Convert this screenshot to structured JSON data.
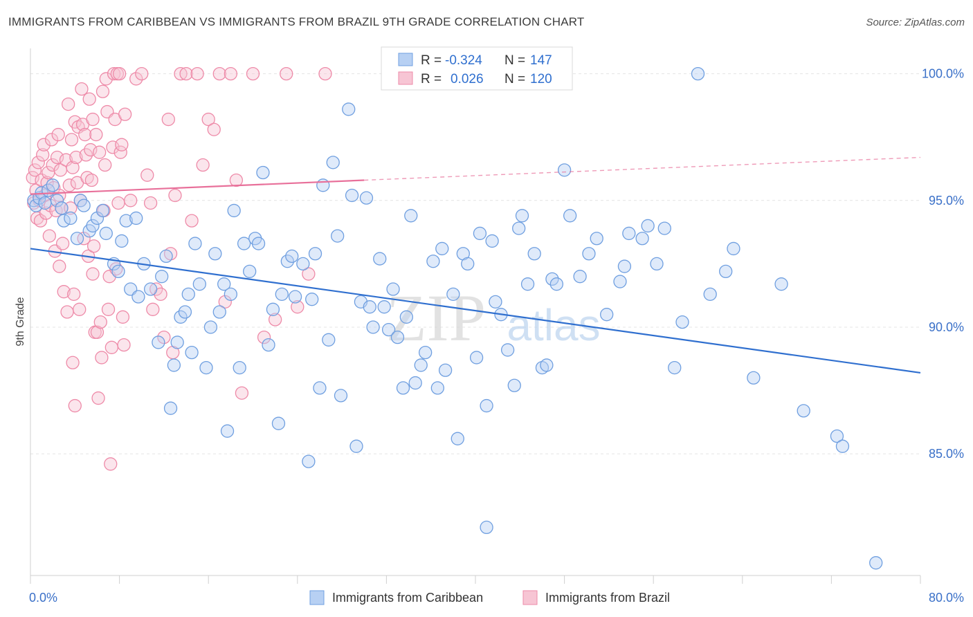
{
  "header": {
    "title": "IMMIGRANTS FROM CARIBBEAN VS IMMIGRANTS FROM BRAZIL 9TH GRADE CORRELATION CHART",
    "source": "Source: ZipAtlas.com"
  },
  "watermark": {
    "zip": "ZIP",
    "atlas": "atlas"
  },
  "colors": {
    "caribbean": "#6f9fe0",
    "caribbean_fill": "#b7d0f3",
    "caribbean_line": "#2f6fcf",
    "brazil": "#ee8aa8",
    "brazil_fill": "#f7c5d4",
    "brazil_line": "#e8709a",
    "tick_label": "#3a70c8",
    "grid": "#e4e4e4"
  },
  "chart_data": {
    "type": "scatter",
    "title": "IMMIGRANTS FROM CARIBBEAN VS IMMIGRANTS FROM BRAZIL 9TH GRADE CORRELATION CHART",
    "xlabel": "",
    "ylabel": "9th Grade",
    "xlim": [
      0,
      80
    ],
    "ylim": [
      80.2,
      101.0
    ],
    "x_tick_labels": [
      "0.0%",
      "80.0%"
    ],
    "y_ticks": [
      85,
      90,
      95,
      100
    ],
    "y_tick_labels": [
      "85.0%",
      "90.0%",
      "95.0%",
      "100.0%"
    ],
    "grid": true,
    "legend": {
      "placement": "top-center",
      "entries": [
        {
          "r_label": "R =",
          "r_value": "-0.324",
          "n_label": "N =",
          "n_value": "147"
        },
        {
          "r_label": "R =",
          "r_value": "0.026",
          "n_label": "N =",
          "n_value": "120"
        }
      ]
    },
    "bottom_legend": [
      "Immigrants from Caribbean",
      "Immigrants from Brazil"
    ],
    "series": [
      {
        "name": "Immigrants from Caribbean",
        "trend": {
          "x": [
            0,
            80
          ],
          "y": [
            93.1,
            88.2
          ],
          "dashed_from": null
        },
        "points": [
          [
            0.3,
            95.0
          ],
          [
            0.5,
            94.8
          ],
          [
            0.8,
            95.1
          ],
          [
            1.0,
            95.3
          ],
          [
            1.3,
            94.9
          ],
          [
            1.6,
            95.4
          ],
          [
            2.0,
            95.6
          ],
          [
            2.4,
            95.0
          ],
          [
            2.8,
            94.7
          ],
          [
            3.0,
            94.2
          ],
          [
            3.6,
            94.3
          ],
          [
            4.2,
            93.5
          ],
          [
            4.5,
            95.0
          ],
          [
            4.8,
            94.8
          ],
          [
            5.3,
            93.8
          ],
          [
            5.6,
            94.0
          ],
          [
            6.0,
            94.3
          ],
          [
            6.5,
            94.6
          ],
          [
            6.8,
            93.7
          ],
          [
            7.5,
            92.5
          ],
          [
            7.9,
            92.2
          ],
          [
            8.2,
            93.4
          ],
          [
            8.6,
            94.2
          ],
          [
            9.0,
            91.5
          ],
          [
            9.5,
            94.3
          ],
          [
            9.7,
            91.2
          ],
          [
            10.2,
            92.5
          ],
          [
            10.8,
            91.5
          ],
          [
            11.5,
            89.4
          ],
          [
            11.8,
            92.0
          ],
          [
            12.2,
            92.8
          ],
          [
            12.6,
            86.8
          ],
          [
            12.9,
            88.5
          ],
          [
            13.2,
            89.4
          ],
          [
            13.5,
            90.4
          ],
          [
            13.9,
            90.6
          ],
          [
            14.2,
            91.3
          ],
          [
            14.5,
            89.0
          ],
          [
            14.8,
            93.3
          ],
          [
            15.2,
            91.7
          ],
          [
            15.8,
            88.4
          ],
          [
            16.2,
            90.0
          ],
          [
            16.6,
            92.9
          ],
          [
            17.0,
            90.6
          ],
          [
            17.4,
            91.7
          ],
          [
            17.7,
            85.9
          ],
          [
            18.0,
            91.3
          ],
          [
            18.3,
            94.6
          ],
          [
            18.8,
            88.4
          ],
          [
            19.2,
            93.3
          ],
          [
            19.7,
            92.2
          ],
          [
            20.2,
            93.5
          ],
          [
            20.5,
            93.3
          ],
          [
            20.9,
            96.1
          ],
          [
            21.4,
            89.3
          ],
          [
            21.8,
            90.7
          ],
          [
            22.3,
            86.2
          ],
          [
            22.6,
            91.3
          ],
          [
            23.1,
            92.6
          ],
          [
            23.5,
            92.8
          ],
          [
            23.8,
            91.2
          ],
          [
            24.5,
            92.5
          ],
          [
            25.0,
            84.7
          ],
          [
            25.3,
            91.1
          ],
          [
            25.6,
            92.9
          ],
          [
            26.0,
            87.6
          ],
          [
            26.3,
            95.6
          ],
          [
            26.8,
            89.5
          ],
          [
            27.2,
            96.5
          ],
          [
            27.6,
            93.6
          ],
          [
            27.9,
            87.3
          ],
          [
            28.6,
            98.6
          ],
          [
            28.9,
            95.2
          ],
          [
            29.3,
            85.3
          ],
          [
            29.7,
            91.0
          ],
          [
            30.2,
            95.1
          ],
          [
            30.5,
            90.8
          ],
          [
            30.8,
            90.0
          ],
          [
            31.4,
            92.7
          ],
          [
            31.8,
            90.8
          ],
          [
            32.2,
            89.9
          ],
          [
            32.6,
            91.5
          ],
          [
            33.0,
            89.6
          ],
          [
            33.5,
            87.6
          ],
          [
            33.8,
            90.4
          ],
          [
            34.2,
            94.4
          ],
          [
            34.6,
            87.8
          ],
          [
            35.1,
            88.5
          ],
          [
            35.5,
            89.0
          ],
          [
            36.2,
            92.6
          ],
          [
            36.6,
            87.6
          ],
          [
            37.0,
            93.1
          ],
          [
            37.3,
            88.3
          ],
          [
            38.0,
            91.3
          ],
          [
            38.4,
            85.6
          ],
          [
            38.9,
            92.9
          ],
          [
            39.3,
            92.5
          ],
          [
            40.1,
            88.8
          ],
          [
            40.4,
            93.7
          ],
          [
            41.0,
            86.9
          ],
          [
            41.5,
            93.4
          ],
          [
            41.8,
            91.0
          ],
          [
            42.3,
            90.5
          ],
          [
            42.9,
            89.1
          ],
          [
            43.5,
            87.7
          ],
          [
            43.9,
            93.9
          ],
          [
            44.2,
            94.4
          ],
          [
            44.7,
            91.7
          ],
          [
            45.3,
            92.9
          ],
          [
            46.0,
            88.4
          ],
          [
            46.4,
            88.5
          ],
          [
            46.9,
            91.9
          ],
          [
            47.3,
            91.7
          ],
          [
            48.0,
            96.2
          ],
          [
            48.5,
            94.4
          ],
          [
            49.4,
            92.0
          ],
          [
            50.2,
            92.9
          ],
          [
            50.9,
            93.5
          ],
          [
            51.8,
            90.5
          ],
          [
            53.0,
            91.8
          ],
          [
            53.4,
            92.4
          ],
          [
            53.8,
            93.7
          ],
          [
            55.0,
            93.5
          ],
          [
            55.5,
            94.0
          ],
          [
            56.3,
            92.5
          ],
          [
            57.0,
            93.9
          ],
          [
            57.9,
            88.4
          ],
          [
            58.6,
            90.2
          ],
          [
            60.0,
            100.0
          ],
          [
            61.1,
            91.3
          ],
          [
            62.5,
            92.2
          ],
          [
            63.2,
            93.1
          ],
          [
            65.0,
            88.0
          ],
          [
            67.5,
            91.7
          ],
          [
            69.5,
            86.7
          ],
          [
            72.5,
            85.7
          ],
          [
            73.0,
            85.3
          ],
          [
            76.0,
            80.7
          ],
          [
            41.0,
            82.1
          ]
        ]
      },
      {
        "name": "Immigrants from Brazil",
        "trend": {
          "x": [
            0,
            30,
            80
          ],
          "y": [
            95.25,
            95.8,
            96.7
          ],
          "dashed_from": 30
        },
        "points": [
          [
            0.2,
            95.9
          ],
          [
            0.3,
            94.9
          ],
          [
            0.4,
            96.2
          ],
          [
            0.5,
            95.4
          ],
          [
            0.6,
            94.3
          ],
          [
            0.7,
            96.5
          ],
          [
            0.8,
            95.0
          ],
          [
            0.9,
            94.2
          ],
          [
            1.0,
            95.8
          ],
          [
            1.1,
            96.8
          ],
          [
            1.2,
            97.2
          ],
          [
            1.3,
            95.2
          ],
          [
            1.4,
            94.5
          ],
          [
            1.5,
            95.7
          ],
          [
            1.6,
            96.1
          ],
          [
            1.7,
            93.6
          ],
          [
            1.8,
            94.8
          ],
          [
            1.9,
            97.4
          ],
          [
            2.0,
            96.4
          ],
          [
            2.1,
            95.5
          ],
          [
            2.2,
            93.0
          ],
          [
            2.3,
            94.6
          ],
          [
            2.4,
            96.7
          ],
          [
            2.5,
            97.6
          ],
          [
            2.6,
            95.2
          ],
          [
            2.7,
            96.2
          ],
          [
            2.8,
            94.7
          ],
          [
            2.9,
            93.3
          ],
          [
            3.0,
            91.4
          ],
          [
            3.2,
            96.6
          ],
          [
            3.4,
            98.8
          ],
          [
            3.5,
            95.6
          ],
          [
            3.6,
            94.7
          ],
          [
            3.7,
            97.4
          ],
          [
            3.8,
            96.3
          ],
          [
            3.9,
            91.3
          ],
          [
            4.0,
            98.1
          ],
          [
            4.1,
            96.7
          ],
          [
            4.2,
            95.7
          ],
          [
            4.3,
            97.9
          ],
          [
            4.5,
            95.0
          ],
          [
            4.6,
            99.4
          ],
          [
            4.7,
            98.0
          ],
          [
            4.8,
            93.5
          ],
          [
            4.9,
            97.6
          ],
          [
            5.0,
            96.8
          ],
          [
            5.1,
            95.9
          ],
          [
            5.2,
            92.8
          ],
          [
            5.3,
            99.0
          ],
          [
            5.4,
            97.0
          ],
          [
            5.5,
            95.8
          ],
          [
            5.6,
            98.2
          ],
          [
            5.7,
            93.2
          ],
          [
            5.8,
            89.8
          ],
          [
            5.9,
            97.6
          ],
          [
            6.0,
            89.8
          ],
          [
            6.1,
            87.2
          ],
          [
            6.2,
            96.9
          ],
          [
            6.3,
            90.2
          ],
          [
            6.4,
            88.8
          ],
          [
            6.5,
            99.3
          ],
          [
            6.6,
            94.6
          ],
          [
            6.7,
            96.4
          ],
          [
            6.8,
            99.8
          ],
          [
            6.9,
            98.5
          ],
          [
            7.0,
            90.7
          ],
          [
            7.1,
            92.0
          ],
          [
            7.2,
            84.6
          ],
          [
            7.3,
            89.2
          ],
          [
            7.4,
            97.1
          ],
          [
            7.5,
            100.0
          ],
          [
            7.6,
            98.2
          ],
          [
            7.7,
            92.3
          ],
          [
            7.8,
            100.0
          ],
          [
            7.9,
            94.9
          ],
          [
            8.0,
            100.0
          ],
          [
            8.1,
            96.9
          ],
          [
            8.2,
            97.2
          ],
          [
            8.3,
            90.4
          ],
          [
            8.4,
            89.3
          ],
          [
            8.5,
            98.4
          ],
          [
            9.0,
            95.0
          ],
          [
            9.5,
            99.8
          ],
          [
            10.0,
            100.0
          ],
          [
            10.5,
            96.0
          ],
          [
            10.8,
            94.9
          ],
          [
            11.0,
            90.7
          ],
          [
            11.3,
            91.5
          ],
          [
            11.7,
            91.3
          ],
          [
            12.0,
            89.6
          ],
          [
            12.4,
            98.2
          ],
          [
            12.6,
            92.9
          ],
          [
            12.8,
            89.0
          ],
          [
            13.0,
            95.2
          ],
          [
            13.5,
            100.0
          ],
          [
            14.0,
            100.0
          ],
          [
            14.5,
            94.2
          ],
          [
            15.0,
            100.0
          ],
          [
            15.5,
            96.4
          ],
          [
            16.0,
            98.2
          ],
          [
            16.5,
            97.8
          ],
          [
            17.0,
            100.0
          ],
          [
            17.5,
            91.0
          ],
          [
            18.0,
            100.0
          ],
          [
            18.5,
            95.8
          ],
          [
            19.0,
            87.4
          ],
          [
            20.0,
            100.0
          ],
          [
            21.0,
            89.6
          ],
          [
            22.0,
            90.3
          ],
          [
            23.0,
            100.0
          ],
          [
            24.0,
            90.8
          ],
          [
            25.0,
            92.1
          ],
          [
            26.5,
            100.0
          ],
          [
            3.3,
            90.6
          ],
          [
            4.4,
            90.7
          ],
          [
            5.6,
            92.1
          ],
          [
            4.0,
            86.9
          ],
          [
            3.8,
            88.6
          ],
          [
            2.6,
            92.4
          ]
        ]
      }
    ]
  }
}
